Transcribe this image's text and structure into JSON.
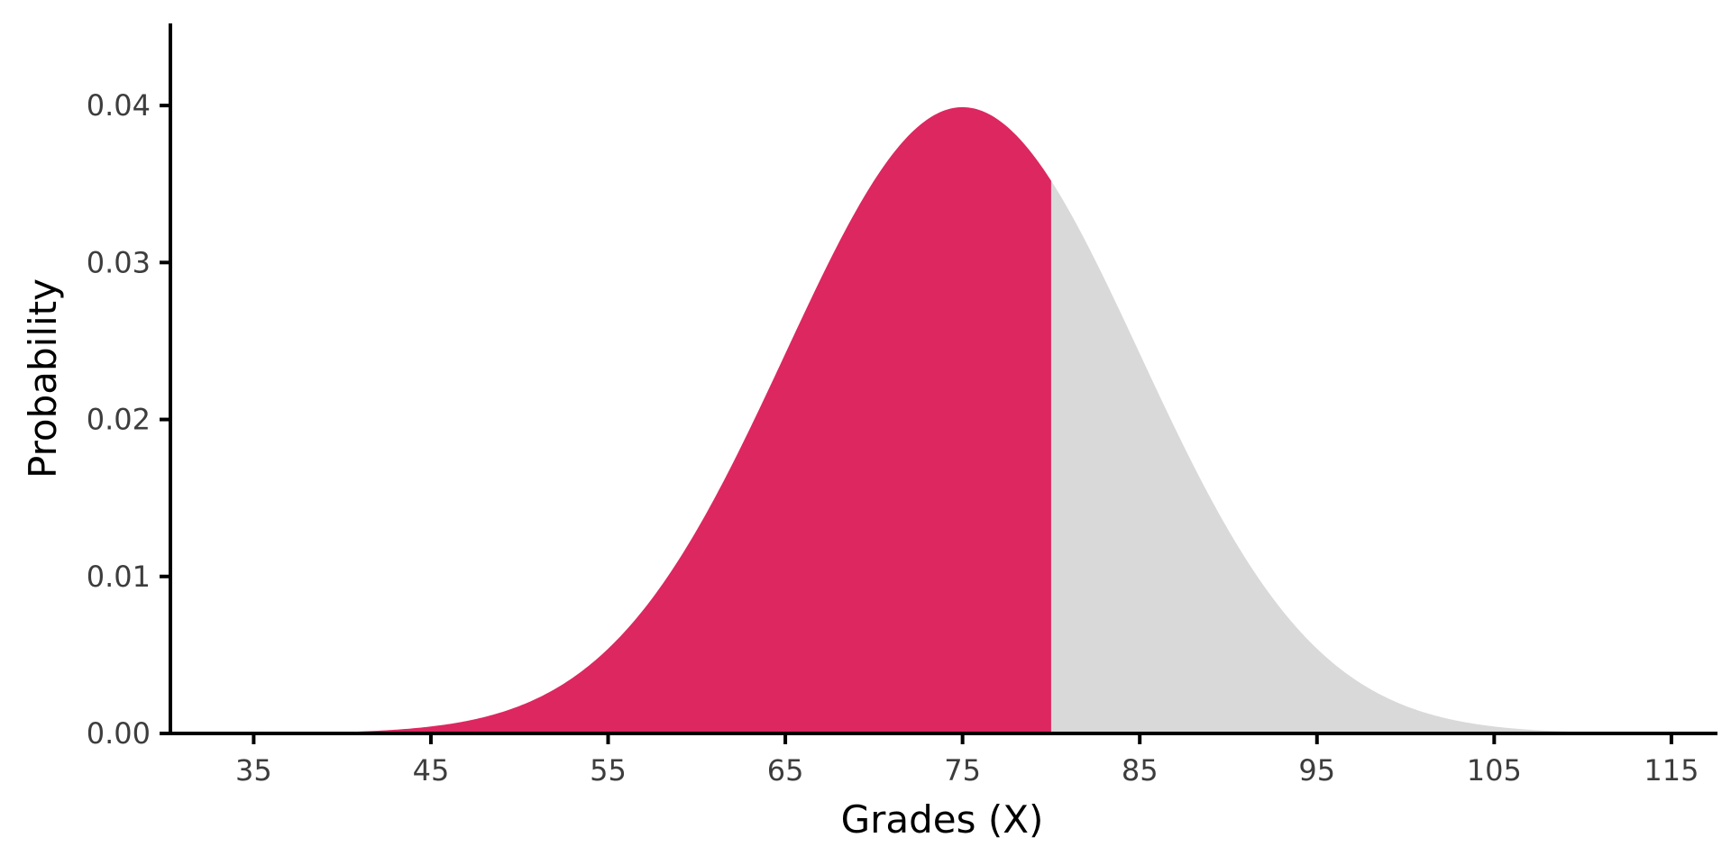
{
  "chart_data": {
    "type": "area",
    "title": "",
    "xlabel": "Grades (X)",
    "ylabel": "Probability",
    "xlim": [
      30.3,
      117.6
    ],
    "ylim": [
      0,
      0.045
    ],
    "x_ticks": [
      35,
      45,
      55,
      65,
      75,
      85,
      95,
      105,
      115
    ],
    "x_tick_labels": [
      "35",
      "45",
      "55",
      "65",
      "75",
      "85",
      "95",
      "105",
      "115"
    ],
    "y_ticks": [
      0,
      0.01,
      0.02,
      0.03,
      0.04
    ],
    "y_tick_labels": [
      "0.00",
      "0.01",
      "0.02",
      "0.03",
      "0.04"
    ],
    "distribution": {
      "name": "normal",
      "mean": 75,
      "sd": 10,
      "x_range": [
        35,
        115
      ]
    },
    "shaded_region": {
      "x_from": 35,
      "x_to": 80,
      "color": "#dc2760"
    },
    "unshaded_region": {
      "x_from": 80,
      "x_to": 115,
      "color": "#d9d9d9"
    },
    "grid": false,
    "legend": "none"
  }
}
